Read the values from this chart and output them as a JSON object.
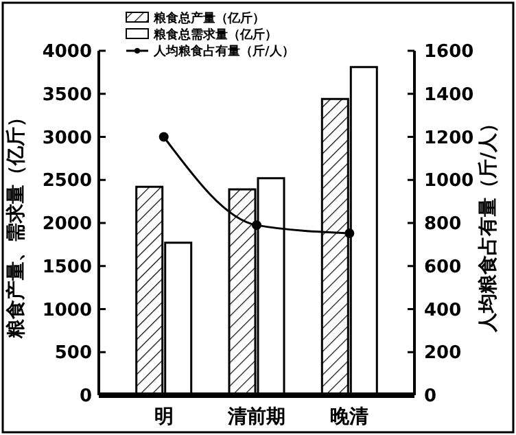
{
  "chart_data": {
    "type": "bar",
    "categories": [
      "明",
      "清前期",
      "晚清"
    ],
    "ylabel": "粮食产量、需求量（亿斤）",
    "y2label": "人均粮食占有量（斤/人）",
    "ylim": [
      0,
      4000
    ],
    "yticks": [
      0,
      500,
      1000,
      1500,
      2000,
      2500,
      3000,
      3500,
      4000
    ],
    "y2lim": [
      0,
      1600
    ],
    "y2ticks": [
      0,
      200,
      400,
      600,
      800,
      1000,
      1200,
      1400,
      1600
    ],
    "legend": "top left",
    "grid": false,
    "series": [
      {
        "name": "粮食总产量（亿斤）",
        "color": "#000000",
        "values": [
          2420,
          2390,
          3440
        ]
      },
      {
        "name": "粮食总需求量（亿斤）",
        "color": "#ffffff",
        "values": [
          1770,
          2520,
          3810
        ]
      },
      {
        "name": "人均粮食占有量（斤/人）",
        "type": "line",
        "axis": "y2",
        "color": "#000000",
        "marker": "circle",
        "values": [
          1200,
          790,
          752
        ]
      }
    ]
  }
}
